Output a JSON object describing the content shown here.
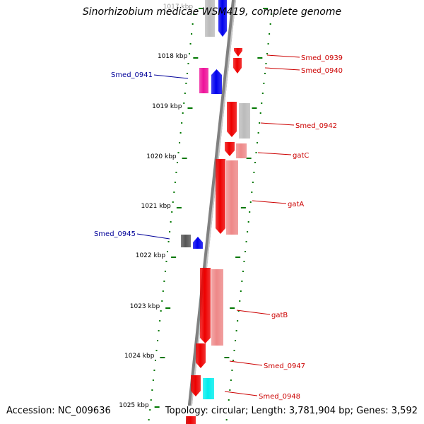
{
  "title": "Sinorhizobium medicae WSM419, complete genome",
  "footer": {
    "accession": "Accession: NC_009636",
    "topology": "Topology: circular; Length: 3,781,904 bp; Genes: 3,592"
  },
  "scale_labels": [
    "1017 kbp",
    "1018 kbp",
    "1019 kbp",
    "1020 kbp",
    "1021 kbp",
    "1022 kbp",
    "1023 kbp",
    "1024 kbp",
    "1025 kbp"
  ],
  "gene_labels": {
    "forward": [
      "Smed_0939",
      "Smed_0940",
      "Smed_0942",
      "gatC",
      "gatA",
      "gatB",
      "Smed_0947",
      "Smed_0948"
    ],
    "reverse": [
      "Smed_0941",
      "Smed_0945"
    ]
  },
  "colors": {
    "forward_label": "#cc0000",
    "reverse_label": "#000099",
    "backbone": "#808080",
    "tick": "#007700",
    "gene_red": "#ee0000",
    "gene_salmon": "#ee8888",
    "gene_grey": "#bbbbbb",
    "gene_blue": "#0000ee",
    "gene_magenta": "#ee1199",
    "gene_darkgrey": "#555555",
    "gene_cyan": "#00eeee"
  }
}
